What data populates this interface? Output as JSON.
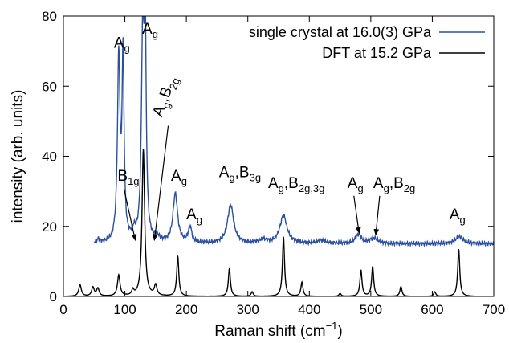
{
  "chart_data": {
    "type": "line",
    "title": "",
    "xlabel": "Raman shift (cm",
    "xlabel_sup": "−1",
    "xlabel_end": ")",
    "ylabel": "intensity (arb. units)",
    "xlim": [
      0,
      700
    ],
    "ylim": [
      0,
      80
    ],
    "xticks": [
      0,
      100,
      200,
      300,
      400,
      500,
      600,
      700
    ],
    "yticks": [
      0,
      20,
      40,
      60,
      80
    ],
    "grid": false,
    "legend_position": "top-right",
    "series": [
      {
        "name": "single crystal at 16.0(3) GPa",
        "color": "#2b50a0",
        "baseline": 15,
        "x_start": 50,
        "peaks": [
          [
            57,
            1.0,
            3
          ],
          [
            90,
            52,
            2.5
          ],
          [
            97,
            52,
            2
          ],
          [
            115,
            2.5,
            4
          ],
          [
            129,
            56,
            2.5
          ],
          [
            133,
            56,
            2
          ],
          [
            152,
            1.5,
            5
          ],
          [
            182,
            14,
            4.5
          ],
          [
            206,
            4.5,
            3.5
          ],
          [
            272,
            11,
            6
          ],
          [
            325,
            1.0,
            8
          ],
          [
            358,
            8,
            7
          ],
          [
            420,
            0.8,
            10
          ],
          [
            480,
            2.5,
            6
          ],
          [
            505,
            1.5,
            8
          ],
          [
            644,
            2.0,
            8
          ]
        ]
      },
      {
        "name": "DFT at 15.2 GPa",
        "color": "#000000",
        "baseline": 0,
        "x_start": 0,
        "peaks": [
          [
            27,
            3.3,
            2.5
          ],
          [
            48,
            2.5,
            2.5
          ],
          [
            56,
            2.2,
            2.5
          ],
          [
            90,
            6,
            2.5
          ],
          [
            113,
            1.5,
            2
          ],
          [
            130,
            42,
            2.5
          ],
          [
            150,
            3,
            2.5
          ],
          [
            186,
            11.5,
            2
          ],
          [
            270,
            8,
            2
          ],
          [
            307,
            1.3,
            2
          ],
          [
            358,
            17,
            2
          ],
          [
            388,
            4,
            2
          ],
          [
            450,
            0.8,
            2
          ],
          [
            484,
            7.5,
            2
          ],
          [
            503,
            8.5,
            2
          ],
          [
            549,
            2.8,
            2
          ],
          [
            604,
            1.3,
            2
          ],
          [
            643,
            13.5,
            2
          ]
        ]
      }
    ],
    "annotations": [
      {
        "base": "B",
        "sub": "1g",
        "x": 117,
        "y": 16,
        "tx": 88,
        "ty": 33,
        "arrow": true
      },
      {
        "base": "A",
        "sub": "g",
        "x": 93,
        "y": 69,
        "tx": 82,
        "ty": 71,
        "arrow": false
      },
      {
        "base": "A",
        "sub": "g",
        "x": 131,
        "y": 70,
        "tx": 128,
        "ty": 75,
        "arrow": false
      },
      {
        "base": "A",
        "sub": "g",
        "base2": "B",
        "sub2": "2g",
        "x": 148,
        "y": 16,
        "tx": 160,
        "ty": 51,
        "arrow": true,
        "rotate": -70
      },
      {
        "base": "A",
        "sub": "g",
        "x": 184,
        "y": 30,
        "tx": 175,
        "ty": 33,
        "arrow": false
      },
      {
        "base": "A",
        "sub": "g",
        "x": 207,
        "y": 20,
        "tx": 200,
        "ty": 22,
        "arrow": false
      },
      {
        "base": "A",
        "sub": "g",
        "base2": "B",
        "sub2": "3g",
        "x": 272,
        "y": 27,
        "tx": 253,
        "ty": 34,
        "arrow": false
      },
      {
        "base": "A",
        "sub": "g",
        "base2": "B",
        "sub2": "2g,3g",
        "x": 358,
        "y": 24,
        "tx": 333,
        "ty": 31,
        "arrow": false
      },
      {
        "base": "A",
        "sub": "g",
        "x": 481,
        "y": 18,
        "tx": 462,
        "ty": 31,
        "arrow": true
      },
      {
        "base": "A",
        "sub": "g",
        "base2": "B",
        "sub2": "2g",
        "x": 508,
        "y": 17.5,
        "tx": 504,
        "ty": 31,
        "arrow": true
      },
      {
        "base": "A",
        "sub": "g",
        "x": 644,
        "y": 18,
        "tx": 628,
        "ty": 22,
        "arrow": false
      }
    ]
  }
}
